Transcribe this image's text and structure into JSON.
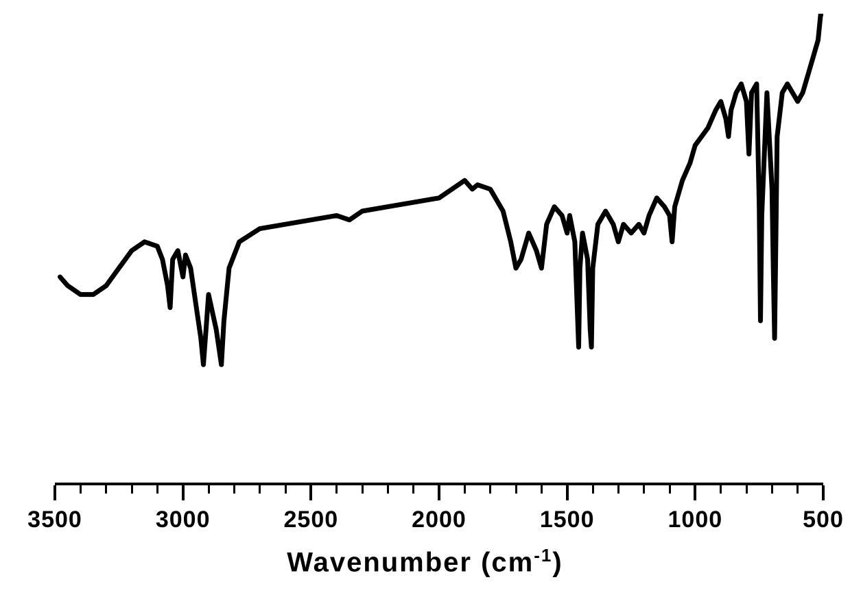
{
  "chart": {
    "type": "line",
    "title": "",
    "xlabel": "Wavenumber (cm",
    "xlabel_super": "-1",
    "xlabel_close": ")",
    "xlabel_fontsize": 40,
    "ylabel": "",
    "label_fontsize": 34,
    "xlim": [
      3500,
      500
    ],
    "x_reversed": true,
    "ylim": [
      0,
      100
    ],
    "xtick_values": [
      3500,
      3000,
      2500,
      2000,
      1500,
      1000,
      500
    ],
    "xtick_labels": [
      "3500",
      "3000",
      "2500",
      "2000",
      "1500",
      "1000",
      "500"
    ],
    "minor_tick_step": 100,
    "background_color": "#ffffff",
    "line_color": "#000000",
    "line_width": 7,
    "axis_color": "#000000",
    "axis_width": 4,
    "tick_length_major": 22,
    "tick_length_minor": 12,
    "font_weight": 900,
    "data": [
      {
        "x": 3480,
        "y": 40
      },
      {
        "x": 3450,
        "y": 38
      },
      {
        "x": 3400,
        "y": 36
      },
      {
        "x": 3350,
        "y": 36
      },
      {
        "x": 3300,
        "y": 38
      },
      {
        "x": 3250,
        "y": 42
      },
      {
        "x": 3200,
        "y": 46
      },
      {
        "x": 3150,
        "y": 48
      },
      {
        "x": 3100,
        "y": 47
      },
      {
        "x": 3080,
        "y": 44
      },
      {
        "x": 3060,
        "y": 38
      },
      {
        "x": 3050,
        "y": 33
      },
      {
        "x": 3040,
        "y": 44
      },
      {
        "x": 3020,
        "y": 46
      },
      {
        "x": 3000,
        "y": 40
      },
      {
        "x": 2990,
        "y": 45
      },
      {
        "x": 2970,
        "y": 42
      },
      {
        "x": 2950,
        "y": 34
      },
      {
        "x": 2930,
        "y": 26
      },
      {
        "x": 2920,
        "y": 20
      },
      {
        "x": 2910,
        "y": 28
      },
      {
        "x": 2900,
        "y": 36
      },
      {
        "x": 2870,
        "y": 28
      },
      {
        "x": 2850,
        "y": 20
      },
      {
        "x": 2840,
        "y": 30
      },
      {
        "x": 2820,
        "y": 42
      },
      {
        "x": 2780,
        "y": 48
      },
      {
        "x": 2700,
        "y": 51
      },
      {
        "x": 2600,
        "y": 52
      },
      {
        "x": 2500,
        "y": 53
      },
      {
        "x": 2400,
        "y": 54
      },
      {
        "x": 2350,
        "y": 53
      },
      {
        "x": 2300,
        "y": 55
      },
      {
        "x": 2200,
        "y": 56
      },
      {
        "x": 2100,
        "y": 57
      },
      {
        "x": 2000,
        "y": 58
      },
      {
        "x": 1950,
        "y": 60
      },
      {
        "x": 1900,
        "y": 62
      },
      {
        "x": 1870,
        "y": 60
      },
      {
        "x": 1850,
        "y": 61
      },
      {
        "x": 1800,
        "y": 60
      },
      {
        "x": 1750,
        "y": 55
      },
      {
        "x": 1720,
        "y": 48
      },
      {
        "x": 1700,
        "y": 42
      },
      {
        "x": 1680,
        "y": 44
      },
      {
        "x": 1650,
        "y": 50
      },
      {
        "x": 1620,
        "y": 46
      },
      {
        "x": 1600,
        "y": 42
      },
      {
        "x": 1580,
        "y": 52
      },
      {
        "x": 1550,
        "y": 56
      },
      {
        "x": 1520,
        "y": 54
      },
      {
        "x": 1500,
        "y": 50
      },
      {
        "x": 1490,
        "y": 54
      },
      {
        "x": 1470,
        "y": 48
      },
      {
        "x": 1460,
        "y": 32
      },
      {
        "x": 1455,
        "y": 24
      },
      {
        "x": 1450,
        "y": 42
      },
      {
        "x": 1440,
        "y": 50
      },
      {
        "x": 1420,
        "y": 44
      },
      {
        "x": 1410,
        "y": 28
      },
      {
        "x": 1405,
        "y": 24
      },
      {
        "x": 1400,
        "y": 42
      },
      {
        "x": 1380,
        "y": 52
      },
      {
        "x": 1350,
        "y": 55
      },
      {
        "x": 1320,
        "y": 52
      },
      {
        "x": 1300,
        "y": 48
      },
      {
        "x": 1280,
        "y": 52
      },
      {
        "x": 1250,
        "y": 50
      },
      {
        "x": 1220,
        "y": 52
      },
      {
        "x": 1200,
        "y": 50
      },
      {
        "x": 1180,
        "y": 54
      },
      {
        "x": 1150,
        "y": 58
      },
      {
        "x": 1120,
        "y": 56
      },
      {
        "x": 1100,
        "y": 54
      },
      {
        "x": 1090,
        "y": 48
      },
      {
        "x": 1080,
        "y": 56
      },
      {
        "x": 1050,
        "y": 62
      },
      {
        "x": 1020,
        "y": 66
      },
      {
        "x": 1000,
        "y": 70
      },
      {
        "x": 950,
        "y": 74
      },
      {
        "x": 920,
        "y": 78
      },
      {
        "x": 900,
        "y": 80
      },
      {
        "x": 880,
        "y": 76
      },
      {
        "x": 870,
        "y": 72
      },
      {
        "x": 860,
        "y": 78
      },
      {
        "x": 840,
        "y": 82
      },
      {
        "x": 820,
        "y": 84
      },
      {
        "x": 800,
        "y": 80
      },
      {
        "x": 790,
        "y": 68
      },
      {
        "x": 780,
        "y": 82
      },
      {
        "x": 760,
        "y": 84
      },
      {
        "x": 750,
        "y": 56
      },
      {
        "x": 745,
        "y": 30
      },
      {
        "x": 740,
        "y": 54
      },
      {
        "x": 720,
        "y": 82
      },
      {
        "x": 700,
        "y": 60
      },
      {
        "x": 695,
        "y": 42
      },
      {
        "x": 690,
        "y": 26
      },
      {
        "x": 685,
        "y": 48
      },
      {
        "x": 680,
        "y": 72
      },
      {
        "x": 660,
        "y": 82
      },
      {
        "x": 640,
        "y": 84
      },
      {
        "x": 620,
        "y": 82
      },
      {
        "x": 600,
        "y": 80
      },
      {
        "x": 580,
        "y": 82
      },
      {
        "x": 560,
        "y": 86
      },
      {
        "x": 540,
        "y": 90
      },
      {
        "x": 520,
        "y": 94
      },
      {
        "x": 510,
        "y": 100
      },
      {
        "x": 500,
        "y": 100
      }
    ]
  }
}
